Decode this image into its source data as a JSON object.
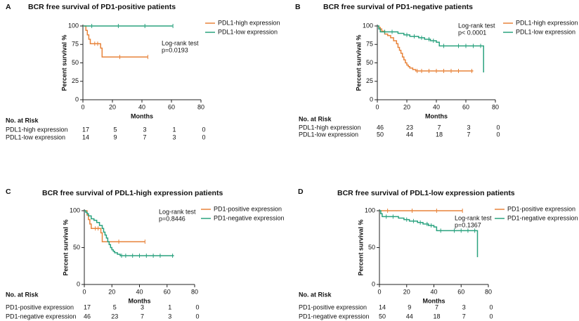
{
  "chart_data": [
    {
      "type": "step",
      "panel": "A",
      "title": "BCR free survival of PD1-positive patients",
      "x_label": "Months",
      "y_label": "Percent survival %",
      "xlim": [
        0,
        80
      ],
      "xticks": [
        0,
        20,
        40,
        60,
        80
      ],
      "ylim": [
        0,
        100
      ],
      "yticks": [
        0,
        25,
        50,
        75,
        100
      ],
      "annotations": [
        "Log-rank test",
        "p=0.0193"
      ],
      "series": [
        {
          "name": "PDL1-high expression",
          "color": "#e8833a",
          "x": [
            0,
            2,
            3,
            4,
            5,
            12,
            13,
            44
          ],
          "values": [
            100,
            94,
            88,
            82,
            76,
            70,
            58,
            58
          ],
          "censored_x": [
            8,
            10,
            25,
            44
          ],
          "censored_y": [
            76,
            76,
            58,
            58
          ]
        },
        {
          "name": "PDL1-low expression",
          "color": "#2aa27f",
          "x": [
            0,
            61
          ],
          "values": [
            100,
            100
          ],
          "censored_x": [
            6,
            24,
            42,
            61
          ],
          "censored_y": [
            100,
            100,
            100,
            100
          ]
        }
      ],
      "risk_table": {
        "title": "No. at Risk",
        "rows": [
          {
            "label": "PDL1-high expression",
            "values": [
              17,
              5,
              3,
              1,
              0
            ]
          },
          {
            "label": "PDL1-low  expression",
            "values": [
              14,
              9,
              7,
              3,
              0
            ]
          }
        ]
      }
    },
    {
      "type": "step",
      "panel": "B",
      "title": "BCR free survival of PD1-negative patients",
      "x_label": "Months",
      "y_label": "Percent survival %",
      "xlim": [
        0,
        80
      ],
      "xticks": [
        0,
        20,
        40,
        60,
        80
      ],
      "ylim": [
        0,
        100
      ],
      "yticks": [
        0,
        25,
        50,
        75,
        100
      ],
      "annotations": [
        "Log-rank test",
        "p< 0.0001"
      ],
      "series": [
        {
          "name": "PDL1-high expression",
          "color": "#e8833a",
          "x": [
            0,
            1,
            2,
            3,
            5,
            7,
            9,
            11,
            13,
            14,
            15,
            16,
            17,
            18,
            19,
            20,
            21,
            22,
            24,
            26,
            65
          ],
          "values": [
            100,
            98,
            96,
            93,
            89,
            87,
            84,
            80,
            76,
            71,
            67,
            63,
            58,
            54,
            50,
            47,
            45,
            43,
            41,
            39,
            39
          ],
          "censored_x": [
            27,
            30,
            35,
            40,
            45,
            50,
            55,
            64
          ],
          "censored_y": [
            39,
            39,
            39,
            39,
            39,
            39,
            39,
            39
          ]
        },
        {
          "name": "PDL1-low expression",
          "color": "#2aa27f",
          "x": [
            0,
            1,
            2,
            14,
            18,
            22,
            28,
            32,
            36,
            40,
            42,
            71,
            72
          ],
          "values": [
            100,
            96,
            92,
            90,
            88,
            86,
            84,
            82,
            80,
            78,
            73,
            73,
            37
          ],
          "censored_x": [
            5,
            10,
            20,
            25,
            30,
            35,
            38,
            45,
            55,
            60,
            65,
            70
          ],
          "censored_y": [
            92,
            92,
            88,
            86,
            84,
            82,
            80,
            73,
            73,
            73,
            73,
            73
          ]
        }
      ],
      "risk_table": {
        "title": "No. at Risk",
        "rows": [
          {
            "label": "PDL1-high expression",
            "values": [
              46,
              23,
              7,
              3,
              0
            ]
          },
          {
            "label": "PDL1-low  expression",
            "values": [
              50,
              44,
              18,
              7,
              0
            ]
          }
        ]
      }
    },
    {
      "type": "step",
      "panel": "C",
      "title": "BCR free survival of PDL1-high expression patients",
      "x_label": "Months",
      "y_label": "Percent survival %",
      "xlim": [
        0,
        80
      ],
      "xticks": [
        0,
        20,
        40,
        60,
        80
      ],
      "ylim": [
        0,
        100
      ],
      "yticks": [
        0,
        50,
        100
      ],
      "annotations": [
        "Log-rank test",
        "p=0.8446"
      ],
      "series": [
        {
          "name": "PD1-positive expression",
          "color": "#e8833a",
          "x": [
            0,
            2,
            3,
            4,
            5,
            12,
            13,
            44
          ],
          "values": [
            100,
            94,
            88,
            82,
            76,
            70,
            58,
            58
          ],
          "censored_x": [
            8,
            10,
            25,
            44
          ],
          "censored_y": [
            76,
            76,
            58,
            58
          ]
        },
        {
          "name": "PD1-negative expression",
          "color": "#2aa27f",
          "x": [
            0,
            1,
            2,
            3,
            5,
            7,
            9,
            11,
            13,
            14,
            15,
            16,
            17,
            18,
            19,
            20,
            21,
            22,
            24,
            26,
            65
          ],
          "values": [
            100,
            98,
            96,
            93,
            89,
            87,
            84,
            80,
            76,
            71,
            67,
            63,
            58,
            54,
            50,
            47,
            45,
            43,
            41,
            39,
            39
          ],
          "censored_x": [
            27,
            30,
            35,
            40,
            45,
            50,
            55,
            64
          ],
          "censored_y": [
            39,
            39,
            39,
            39,
            39,
            39,
            39,
            39
          ]
        }
      ],
      "risk_table": {
        "title": "No. at Risk",
        "rows": [
          {
            "label": "PD1-positive expression",
            "values": [
              17,
              5,
              3,
              1,
              0
            ]
          },
          {
            "label": "PD1-negative expression",
            "values": [
              46,
              23,
              7,
              3,
              0
            ]
          }
        ]
      }
    },
    {
      "type": "step",
      "panel": "D",
      "title": "BCR free survival of PDL1-low expression patients",
      "x_label": "Months",
      "y_label": "Percent survival %",
      "xlim": [
        0,
        80
      ],
      "xticks": [
        0,
        20,
        40,
        60,
        80
      ],
      "ylim": [
        0,
        100
      ],
      "yticks": [
        0,
        50,
        100
      ],
      "annotations": [
        "Log-rank test",
        "p=0.1367"
      ],
      "series": [
        {
          "name": "PD1-positive expression",
          "color": "#e8833a",
          "x": [
            0,
            61
          ],
          "values": [
            100,
            100
          ],
          "censored_x": [
            6,
            24,
            42,
            61
          ],
          "censored_y": [
            100,
            100,
            100,
            100
          ]
        },
        {
          "name": "PD1-negative expression",
          "color": "#2aa27f",
          "x": [
            0,
            1,
            2,
            14,
            18,
            22,
            28,
            32,
            36,
            40,
            42,
            71,
            72
          ],
          "values": [
            100,
            96,
            92,
            90,
            88,
            86,
            84,
            82,
            80,
            78,
            73,
            73,
            37
          ],
          "censored_x": [
            5,
            10,
            20,
            25,
            30,
            35,
            38,
            45,
            55,
            60,
            65,
            70
          ],
          "censored_y": [
            92,
            92,
            88,
            86,
            84,
            82,
            80,
            73,
            73,
            73,
            73,
            73
          ]
        }
      ],
      "risk_table": {
        "title": "No. at Risk",
        "rows": [
          {
            "label": "PD1-positive expression",
            "values": [
              14,
              9,
              7,
              3,
              0
            ]
          },
          {
            "label": "PD1-negative expression",
            "values": [
              50,
              44,
              18,
              7,
              0
            ]
          }
        ]
      }
    }
  ]
}
